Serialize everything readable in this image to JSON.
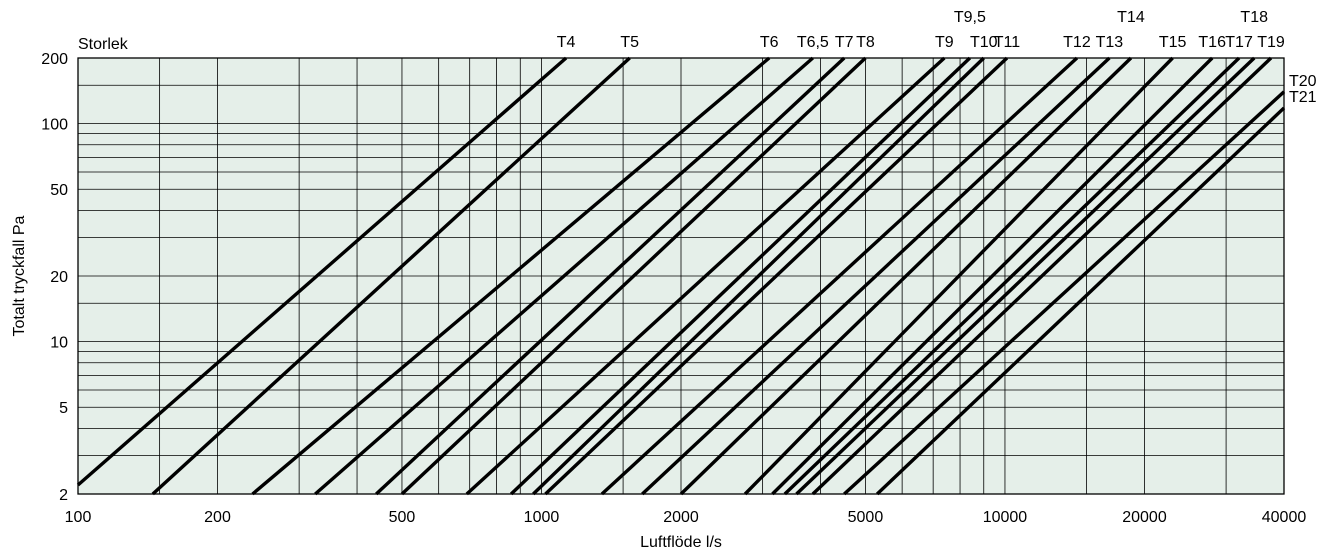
{
  "chart_data": {
    "type": "line",
    "title": "",
    "xlabel": "Luftflöde l/s",
    "ylabel": "Totalt tryckfall Pa",
    "series_heading": "Storlek",
    "x_scale": "log",
    "y_scale": "log",
    "xlim": [
      100,
      40000
    ],
    "ylim": [
      2,
      200
    ],
    "grid": true,
    "legend": "none",
    "x_ticks": [
      100,
      200,
      500,
      1000,
      2000,
      5000,
      10000,
      20000,
      40000
    ],
    "y_ticks": [
      2,
      5,
      10,
      20,
      50,
      100,
      200
    ],
    "x_gridlines": [
      100,
      150,
      200,
      300,
      400,
      500,
      600,
      700,
      800,
      900,
      1000,
      1500,
      2000,
      3000,
      4000,
      5000,
      6000,
      7000,
      8000,
      9000,
      10000,
      15000,
      20000,
      30000,
      40000
    ],
    "y_gridlines": [
      2,
      3,
      4,
      5,
      6,
      7,
      8,
      9,
      10,
      15,
      20,
      30,
      40,
      50,
      60,
      70,
      80,
      90,
      100,
      150,
      200
    ],
    "series": [
      {
        "name": "T4",
        "points": [
          [
            100,
            2.2
          ],
          [
            1130,
            200
          ]
        ]
      },
      {
        "name": "T5",
        "points": [
          [
            145,
            2
          ],
          [
            1550,
            200
          ]
        ]
      },
      {
        "name": "T6",
        "points": [
          [
            238,
            2
          ],
          [
            3100,
            200
          ]
        ]
      },
      {
        "name": "T6,5",
        "points": [
          [
            325,
            2
          ],
          [
            3850,
            200
          ]
        ]
      },
      {
        "name": "T7",
        "points": [
          [
            440,
            2
          ],
          [
            4500,
            200
          ]
        ]
      },
      {
        "name": "T8",
        "points": [
          [
            500,
            2
          ],
          [
            5000,
            200
          ]
        ]
      },
      {
        "name": "T9",
        "points": [
          [
            690,
            2
          ],
          [
            7400,
            200
          ]
        ]
      },
      {
        "name": "T9,5",
        "points": [
          [
            860,
            2
          ],
          [
            8400,
            200
          ]
        ]
      },
      {
        "name": "T10",
        "points": [
          [
            960,
            2
          ],
          [
            9000,
            200
          ]
        ]
      },
      {
        "name": "T11",
        "points": [
          [
            1020,
            2
          ],
          [
            10100,
            200
          ]
        ]
      },
      {
        "name": "T12",
        "points": [
          [
            1350,
            2
          ],
          [
            14300,
            200
          ]
        ]
      },
      {
        "name": "T13",
        "points": [
          [
            1650,
            2
          ],
          [
            16800,
            200
          ]
        ]
      },
      {
        "name": "T14",
        "points": [
          [
            2000,
            2
          ],
          [
            18700,
            200
          ]
        ]
      },
      {
        "name": "T15",
        "points": [
          [
            2750,
            2
          ],
          [
            23000,
            200
          ]
        ]
      },
      {
        "name": "T16",
        "points": [
          [
            3150,
            2
          ],
          [
            28000,
            200
          ]
        ]
      },
      {
        "name": "T17",
        "points": [
          [
            3350,
            2
          ],
          [
            32000,
            200
          ]
        ]
      },
      {
        "name": "T18",
        "points": [
          [
            3550,
            2
          ],
          [
            34500,
            200
          ]
        ]
      },
      {
        "name": "T19",
        "points": [
          [
            3850,
            2
          ],
          [
            37500,
            200
          ]
        ]
      },
      {
        "name": "T20",
        "points": [
          [
            4500,
            2
          ],
          [
            40000,
            140
          ]
        ]
      },
      {
        "name": "T21",
        "points": [
          [
            5300,
            2
          ],
          [
            40000,
            118
          ]
        ]
      }
    ]
  }
}
